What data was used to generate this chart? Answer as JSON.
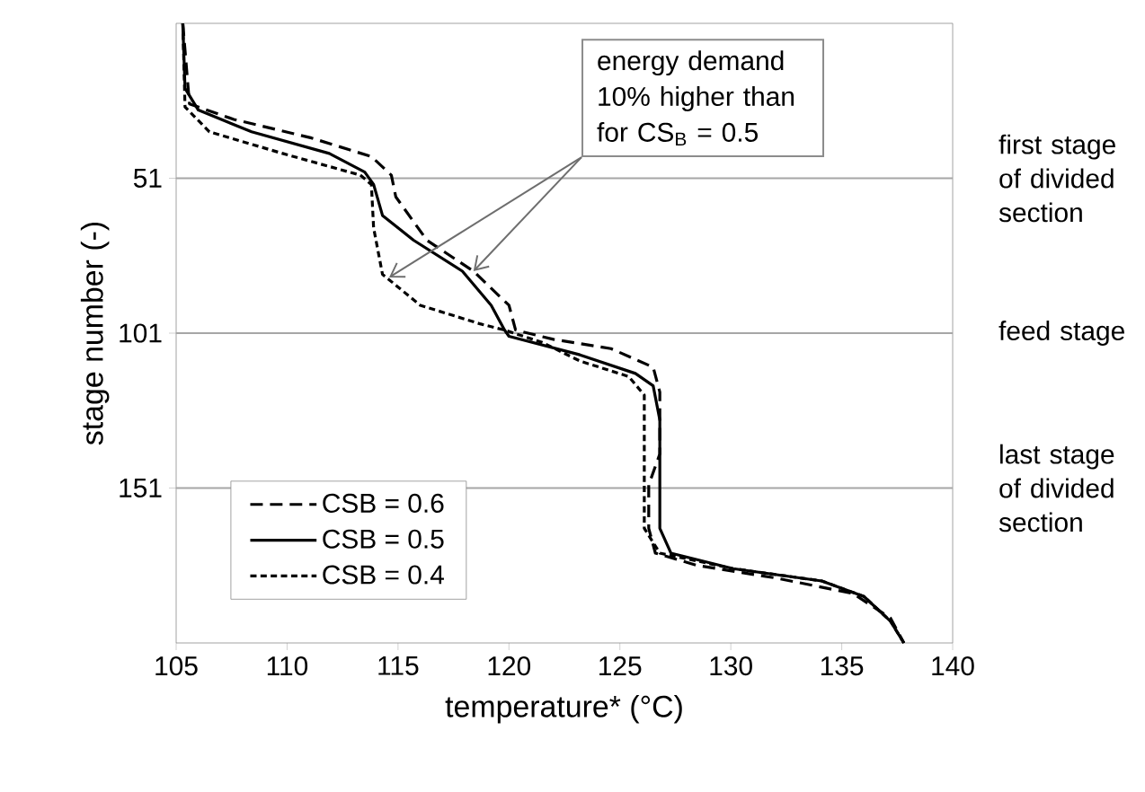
{
  "chart_data": {
    "type": "line",
    "xlabel": "temperature* (°C)",
    "ylabel": "stage number (-)",
    "xlim": [
      105,
      140
    ],
    "xticks": [
      105,
      110,
      115,
      120,
      125,
      130,
      135,
      140
    ],
    "ylim": [
      201,
      1
    ],
    "yticks": [
      51,
      101,
      151
    ],
    "legend": "bottom left",
    "marker": "none",
    "series": [
      {
        "name": "CSB = 0.6",
        "color": "#000000",
        "line_style": "dashed",
        "x": [
          105.3,
          105.6,
          107.6,
          111.1,
          113.8,
          114.7,
          114.9,
          116.3,
          118.4,
          120.0,
          120.3,
          122.0,
          124.6,
          126.5,
          126.8,
          126.8,
          126.3,
          126.3,
          126.6,
          128.5,
          132,
          135.5,
          137.2,
          137.8
        ],
        "values": [
          1,
          27,
          32,
          38,
          44,
          50,
          57,
          71,
          81,
          92,
          100,
          103,
          106,
          112,
          120,
          140,
          150,
          164,
          172,
          176,
          180,
          185,
          193,
          201
        ]
      },
      {
        "name": "CSB = 0.5",
        "color": "#000000",
        "line_style": "solid",
        "x": [
          105.3,
          105.4,
          106.0,
          108.4,
          111.9,
          113.5,
          113.9,
          114.3,
          115.7,
          117.9,
          119.2,
          119.8,
          120.0,
          123.2,
          125.7,
          126.5,
          126.8,
          126.8,
          127.3,
          130.1,
          134.1,
          136.0,
          137.2,
          137.8
        ],
        "values": [
          1,
          22,
          29,
          36,
          43,
          49,
          53,
          63,
          71,
          81,
          92,
          100,
          102,
          108,
          114,
          118,
          129,
          164,
          172,
          177,
          181,
          186,
          194,
          201
        ]
      },
      {
        "name": "CSB = 0.4",
        "color": "#000000",
        "line_style": "dotted",
        "x": [
          105.3,
          105.4,
          106.5,
          109.8,
          113.3,
          113.8,
          113.9,
          114.3,
          116.0,
          118.7,
          119.8,
          121.5,
          123.2,
          125.4,
          126.1,
          126.1,
          126.8,
          130.1,
          134.1,
          136.0,
          137.2,
          137.8
        ],
        "values": [
          1,
          28,
          36,
          43,
          50,
          53,
          67,
          82,
          92,
          98,
          100,
          104,
          110,
          115,
          121,
          164,
          172,
          177,
          181,
          186,
          194,
          201
        ]
      }
    ],
    "ref_lines": [
      {
        "axis": "y",
        "value": 51,
        "label": "first stage of divided section",
        "color": "#a6a6a6"
      },
      {
        "axis": "y",
        "value": 101,
        "label": "feed stage",
        "color": "#a6a6a6"
      },
      {
        "axis": "y",
        "value": 151,
        "label": "last stage of divided section",
        "color": "#a6a6a6"
      }
    ],
    "annotations": [
      {
        "text": "energy demand 10% higher than for CS$_{B}$ = 0.5",
        "x": 114.6,
        "y": 83
      }
    ]
  }
}
